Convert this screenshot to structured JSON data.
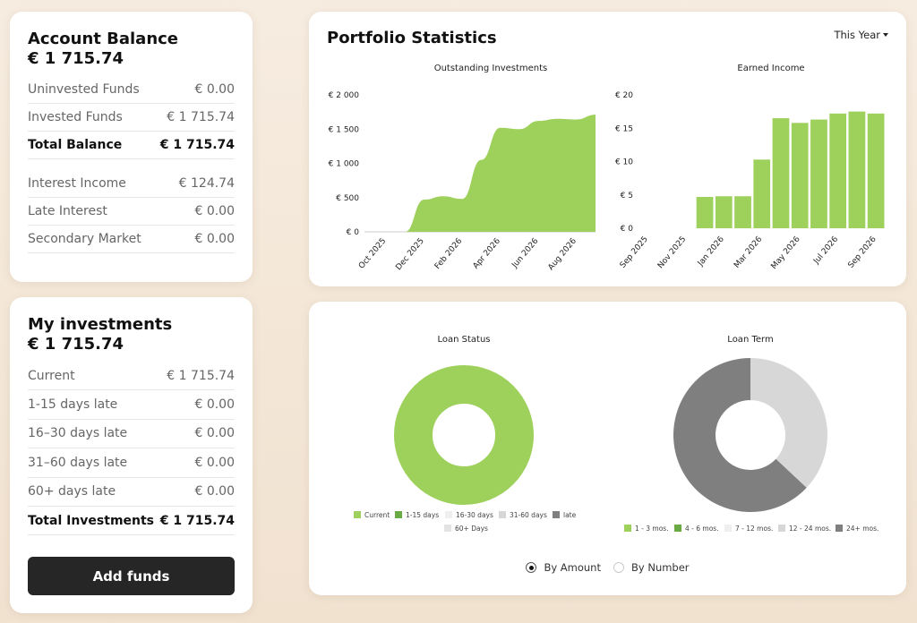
{
  "account": {
    "title": "Account Balance",
    "amount": "€ 1 715.74",
    "rows": [
      {
        "label": "Uninvested Funds",
        "value": "€ 0.00"
      },
      {
        "label": "Invested Funds",
        "value": "€ 1 715.74"
      },
      {
        "label": "Total Balance",
        "value": "€ 1 715.74"
      },
      {
        "label": "Interest Income",
        "value": "€ 124.74"
      },
      {
        "label": "Late Interest",
        "value": "€ 0.00"
      },
      {
        "label": "Secondary Market",
        "value": "€ 0.00"
      }
    ]
  },
  "investments": {
    "title": "My investments",
    "amount": "€ 1 715.74",
    "rows": [
      {
        "label": "Current",
        "value": "€ 1 715.74"
      },
      {
        "label": "1-15 days late",
        "value": "€ 0.00"
      },
      {
        "label": "16–30 days late",
        "value": "€ 0.00"
      },
      {
        "label": "31–60 days late",
        "value": "€ 0.00"
      },
      {
        "label": "60+ days late",
        "value": "€ 0.00"
      },
      {
        "label": "Total Investments",
        "value": "€ 1 715.74"
      }
    ],
    "add_funds_label": "Add funds"
  },
  "stats": {
    "title": "Portfolio Statistics",
    "period": "This Year"
  },
  "toggle": {
    "by_amount": "By Amount",
    "by_number": "By Number",
    "selected": "By Amount"
  },
  "colors": {
    "green": "#9ed05c",
    "dark_green": "#6aaa45",
    "very_light_gray": "#efefef",
    "light_gray": "#d7d7d7",
    "mid_gray": "#7f7f7f"
  },
  "chart_data": [
    {
      "type": "area",
      "title": "Outstanding Investments",
      "ylim": [
        0,
        2000
      ],
      "yticks": [
        0,
        500,
        1000,
        1500,
        2000
      ],
      "ytick_labels": [
        "€ 0",
        "€ 500",
        "€ 1 000",
        "€ 1 500",
        "€ 2 000"
      ],
      "xtick_labels": [
        "Oct 2025",
        "Dec 2025",
        "Feb 2026",
        "Apr 2026",
        "Jun 2026",
        "Aug 2026"
      ],
      "x": [
        "Oct 2025",
        "Nov 2025",
        "Dec 2025",
        "Jan 2026",
        "Feb 2026",
        "Mar 2026",
        "Apr 2026",
        "May 2026",
        "Jun 2026",
        "Jul 2026",
        "Aug 2026",
        "Sep 2026"
      ],
      "values": [
        0,
        0,
        470,
        520,
        480,
        1050,
        1520,
        1500,
        1620,
        1650,
        1640,
        1710
      ],
      "color": "#9ed05c"
    },
    {
      "type": "bar",
      "title": "Earned Income",
      "ylim": [
        0,
        20
      ],
      "yticks": [
        0,
        5,
        10,
        15,
        20
      ],
      "ytick_labels": [
        "€ 0",
        "€ 5",
        "€ 10",
        "€ 15",
        "€ 20"
      ],
      "xtick_labels": [
        "Sep 2025",
        "Nov 2025",
        "Jan 2026",
        "Mar 2026",
        "May 2026",
        "Jul 2026",
        "Sep 2026"
      ],
      "categories": [
        "Sep 2025",
        "Oct 2025",
        "Nov 2025",
        "Dec 2025",
        "Jan 2026",
        "Feb 2026",
        "Mar 2026",
        "Apr 2026",
        "May 2026",
        "Jun 2026",
        "Jul 2026",
        "Aug 2026",
        "Sep 2026"
      ],
      "values": [
        0,
        0,
        0,
        4.7,
        4.8,
        4.8,
        10.3,
        16.5,
        15.8,
        16.3,
        17.2,
        17.5,
        17.2
      ],
      "color": "#9ed05c"
    },
    {
      "type": "pie",
      "title": "Loan Status",
      "labels": [
        "Current",
        "1-15 days",
        "16-30 days",
        "31-60 days",
        "late",
        "60+ Days"
      ],
      "values": [
        100,
        0,
        0,
        0,
        0,
        0
      ],
      "colors": [
        "#9ed05c",
        "#6aaa45",
        "#efefef",
        "#d7d7d7",
        "#7f7f7f",
        "#e3e3e3"
      ]
    },
    {
      "type": "pie",
      "title": "Loan Term",
      "labels": [
        "1 - 3 mos.",
        "4 - 6 mos.",
        "7 - 12 mos.",
        "12 - 24 mos.",
        "24+ mos."
      ],
      "values": [
        0,
        0,
        0,
        37,
        63
      ],
      "colors": [
        "#9ed05c",
        "#6aaa45",
        "#efefef",
        "#d7d7d7",
        "#7f7f7f"
      ]
    }
  ]
}
